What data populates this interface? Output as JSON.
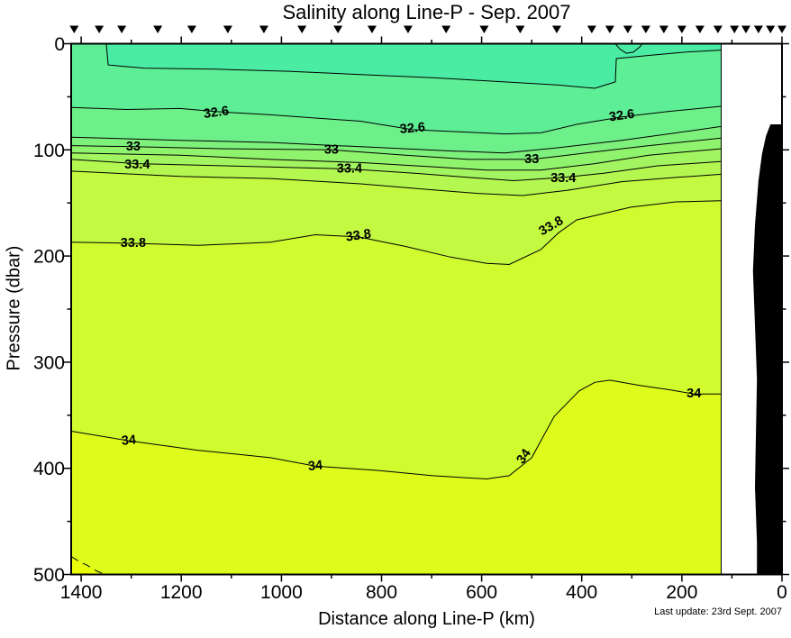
{
  "title": "Salinity along Line-P - Sep. 2007",
  "update_note": "Last update: 23rd Sept. 2007",
  "axes": {
    "x": {
      "label": "Distance along Line-P (km)",
      "major_ticks": [
        1400,
        1200,
        1000,
        800,
        600,
        400,
        200,
        0
      ],
      "minor_ticks": [
        1300,
        1100,
        900,
        700,
        500,
        300,
        100
      ]
    },
    "y": {
      "label": "Pressure (dbar)",
      "major_ticks": [
        0,
        100,
        200,
        300,
        400,
        500
      ],
      "minor_ticks": [
        50,
        150,
        250,
        350,
        450
      ]
    }
  },
  "colors": {
    "background": "#FFFFFF",
    "frame": "#000000",
    "contour_line": "#000000",
    "station_marker": "#000000",
    "bathymetry": "#000000"
  },
  "chart_data": {
    "type": "heatmap",
    "subtype": "filled_contour_section",
    "title": "Salinity along Line-P - Sep. 2007",
    "xlabel": "Distance along Line-P (km)",
    "ylabel": "Pressure (dbar)",
    "xlim": [
      1420,
      0
    ],
    "ylim": [
      0,
      500
    ],
    "x_axis_reversed": true,
    "y_axis_downward": true,
    "grid": false,
    "data_extent_km": [
      1420,
      122
    ],
    "contour_levels": [
      32.4,
      32.6,
      32.8,
      33.0,
      33.2,
      33.4,
      33.6,
      33.8,
      34.0,
      34.2
    ],
    "labeled_levels": [
      32.6,
      33.0,
      33.4,
      33.8,
      34.0
    ],
    "bands": [
      {
        "max": 32.4,
        "color": "#4AECA4"
      },
      {
        "min": 32.4,
        "max": 32.6,
        "color": "#5DEE96"
      },
      {
        "min": 32.6,
        "max": 32.8,
        "color": "#6DF089"
      },
      {
        "min": 32.8,
        "max": 33.0,
        "color": "#7EF17C"
      },
      {
        "min": 33.0,
        "max": 33.2,
        "color": "#90F36E"
      },
      {
        "min": 33.2,
        "max": 33.4,
        "color": "#A2F560"
      },
      {
        "min": 33.4,
        "max": 33.6,
        "color": "#B4F751"
      },
      {
        "min": 33.6,
        "max": 33.8,
        "color": "#C3F940"
      },
      {
        "min": 33.8,
        "max": 34.0,
        "color": "#CFFB2F"
      },
      {
        "min": 34.0,
        "max": 34.2,
        "color": "#DDFC1B"
      },
      {
        "min": 34.2,
        "color": "#E8FE0B"
      }
    ],
    "contours": [
      {
        "level": 32.4,
        "dash": false,
        "points_km_dbar": [
          [
            1420,
            0
          ],
          [
            1350,
            0
          ],
          [
            1346,
            20
          ],
          [
            1274,
            23
          ],
          [
            1130,
            24
          ],
          [
            986,
            26
          ],
          [
            842,
            29
          ],
          [
            698,
            32
          ],
          [
            554,
            36
          ],
          [
            446,
            39
          ],
          [
            374,
            42
          ],
          [
            333,
            36
          ],
          [
            331,
            14
          ],
          [
            266,
            11
          ],
          [
            194,
            8
          ],
          [
            122,
            6
          ]
        ]
      },
      {
        "level": 32.6,
        "dash": false,
        "points_km_dbar": [
          [
            1420,
            60
          ],
          [
            1310,
            62
          ],
          [
            1202,
            61
          ],
          [
            1130,
            64
          ],
          [
            1022,
            67
          ],
          [
            932,
            70
          ],
          [
            842,
            73
          ],
          [
            738,
            81
          ],
          [
            644,
            83
          ],
          [
            554,
            85
          ],
          [
            482,
            84
          ],
          [
            410,
            76
          ],
          [
            320,
            69
          ],
          [
            230,
            64
          ],
          [
            122,
            59
          ]
        ]
      },
      {
        "level": 32.8,
        "dash": false,
        "points_km_dbar": [
          [
            1420,
            88
          ],
          [
            1202,
            91
          ],
          [
            1022,
            93
          ],
          [
            842,
            97
          ],
          [
            662,
            101
          ],
          [
            554,
            103
          ],
          [
            446,
            98
          ],
          [
            320,
            91
          ],
          [
            212,
            84
          ],
          [
            122,
            78
          ]
        ]
      },
      {
        "level": 33.0,
        "dash": false,
        "points_km_dbar": [
          [
            1420,
            96
          ],
          [
            1296,
            97
          ],
          [
            1112,
            99
          ],
          [
            900,
            100
          ],
          [
            752,
            105
          ],
          [
            626,
            109
          ],
          [
            500,
            109
          ],
          [
            392,
            103
          ],
          [
            266,
            96
          ],
          [
            122,
            89
          ]
        ]
      },
      {
        "level": 33.2,
        "dash": false,
        "points_km_dbar": [
          [
            1420,
            103
          ],
          [
            1202,
            105
          ],
          [
            1022,
            109
          ],
          [
            842,
            112
          ],
          [
            698,
            116
          ],
          [
            590,
            119
          ],
          [
            482,
            119
          ],
          [
            374,
            113
          ],
          [
            266,
            105
          ],
          [
            122,
            99
          ]
        ]
      },
      {
        "level": 33.4,
        "dash": false,
        "points_km_dbar": [
          [
            1420,
            109
          ],
          [
            1288,
            113
          ],
          [
            1112,
            115
          ],
          [
            864,
            118
          ],
          [
            734,
            122
          ],
          [
            626,
            126
          ],
          [
            536,
            129
          ],
          [
            437,
            126
          ],
          [
            356,
            122
          ],
          [
            248,
            115
          ],
          [
            122,
            111
          ]
        ]
      },
      {
        "level": 33.6,
        "dash": false,
        "points_km_dbar": [
          [
            1420,
            120
          ],
          [
            1202,
            125
          ],
          [
            1022,
            127
          ],
          [
            842,
            132
          ],
          [
            716,
            137
          ],
          [
            608,
            141
          ],
          [
            518,
            143
          ],
          [
            428,
            138
          ],
          [
            320,
            130
          ],
          [
            212,
            126
          ],
          [
            122,
            123
          ]
        ]
      },
      {
        "level": 33.8,
        "dash": false,
        "points_km_dbar": [
          [
            1420,
            187
          ],
          [
            1296,
            188
          ],
          [
            1166,
            190
          ],
          [
            1022,
            187
          ],
          [
            932,
            180
          ],
          [
            846,
            182
          ],
          [
            752,
            191
          ],
          [
            662,
            201
          ],
          [
            590,
            207
          ],
          [
            545,
            208
          ],
          [
            482,
            194
          ],
          [
            446,
            178
          ],
          [
            410,
            166
          ],
          [
            302,
            154
          ],
          [
            212,
            149
          ],
          [
            122,
            148
          ]
        ]
      },
      {
        "level": 34.0,
        "dash": false,
        "points_km_dbar": [
          [
            1420,
            365
          ],
          [
            1305,
            374
          ],
          [
            1166,
            383
          ],
          [
            1022,
            390
          ],
          [
            932,
            398
          ],
          [
            806,
            402
          ],
          [
            698,
            407
          ],
          [
            590,
            410
          ],
          [
            545,
            407
          ],
          [
            500,
            390
          ],
          [
            455,
            351
          ],
          [
            405,
            327
          ],
          [
            374,
            319
          ],
          [
            344,
            317
          ],
          [
            284,
            322
          ],
          [
            225,
            326
          ],
          [
            176,
            330
          ],
          [
            122,
            330
          ]
        ]
      },
      {
        "level": 34.2,
        "dash": true,
        "points_km_dbar": [
          [
            1420,
            483
          ],
          [
            1400,
            489
          ],
          [
            1389,
            491
          ],
          [
            1368,
            497
          ],
          [
            1352,
            500
          ]
        ]
      }
    ],
    "surface_dip_contour": {
      "level": 32.2,
      "points_km_dbar": [
        [
          333,
          0
        ],
        [
          324,
          5
        ],
        [
          311,
          9
        ],
        [
          297,
          8
        ],
        [
          284,
          3
        ],
        [
          279,
          0
        ]
      ]
    },
    "contour_labels": [
      {
        "text": "32.6",
        "km": 1130,
        "dbar": 65,
        "angle": -8
      },
      {
        "text": "32.6",
        "km": 738,
        "dbar": 80,
        "angle": -5
      },
      {
        "text": "32.6",
        "km": 320,
        "dbar": 68,
        "angle": -8
      },
      {
        "text": "33",
        "km": 1296,
        "dbar": 97,
        "angle": 0
      },
      {
        "text": "33",
        "km": 900,
        "dbar": 100,
        "angle": 0
      },
      {
        "text": "33",
        "km": 500,
        "dbar": 109,
        "angle": 0
      },
      {
        "text": "33.4",
        "km": 1288,
        "dbar": 114,
        "angle": 0
      },
      {
        "text": "33.4",
        "km": 864,
        "dbar": 118,
        "angle": 0
      },
      {
        "text": "33.4",
        "km": 437,
        "dbar": 127,
        "angle": 0
      },
      {
        "text": "33.8",
        "km": 1296,
        "dbar": 188,
        "angle": 0
      },
      {
        "text": "33.8",
        "km": 846,
        "dbar": 181,
        "angle": -8
      },
      {
        "text": "33.8",
        "km": 461,
        "dbar": 172,
        "angle": -30
      },
      {
        "text": "34",
        "km": 1305,
        "dbar": 374,
        "angle": -5
      },
      {
        "text": "34",
        "km": 932,
        "dbar": 398,
        "angle": -5
      },
      {
        "text": "34",
        "km": 515,
        "dbar": 389,
        "angle": -55
      },
      {
        "text": "34",
        "km": 176,
        "dbar": 330,
        "angle": 0
      }
    ],
    "station_marker_km": [
      1414,
      1364,
      1319,
      1247,
      1179,
      1107,
      1035,
      959,
      887,
      819,
      747,
      671,
      595,
      523,
      450,
      380,
      344,
      308,
      272,
      236,
      200,
      164,
      128,
      95,
      72,
      47,
      23,
      0
    ],
    "bathymetry_km_dbar": [
      [
        23,
        76
      ],
      [
        32,
        87
      ],
      [
        40,
        104
      ],
      [
        47,
        129
      ],
      [
        54,
        171
      ],
      [
        58,
        214
      ],
      [
        54,
        265
      ],
      [
        50,
        316
      ],
      [
        52,
        367
      ],
      [
        54,
        418
      ],
      [
        50,
        469
      ],
      [
        50,
        500
      ],
      [
        0,
        500
      ],
      [
        0,
        76
      ]
    ]
  }
}
